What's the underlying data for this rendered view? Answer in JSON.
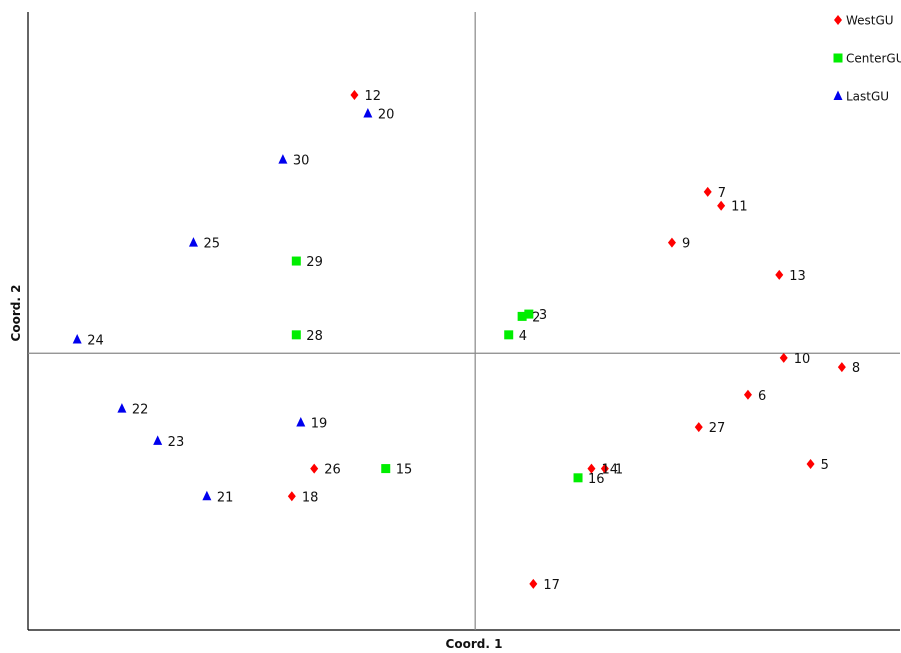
{
  "chart_data": {
    "type": "scatter",
    "title": "",
    "xlabel": "Coord. 1",
    "ylabel": "Coord. 2",
    "xlim": [
      -1.0,
      0.95
    ],
    "ylim": [
      -0.6,
      0.74
    ],
    "reference_lines": {
      "x": 0,
      "y": 0
    },
    "grid": false,
    "legend_position": "top-right",
    "series": [
      {
        "name": "WestGU",
        "color": "#ff0000",
        "marker": "diamond",
        "points": [
          {
            "label": "12",
            "x": -0.27,
            "y": 0.56
          },
          {
            "label": "7",
            "x": 0.52,
            "y": 0.35
          },
          {
            "label": "11",
            "x": 0.55,
            "y": 0.32
          },
          {
            "label": "9",
            "x": 0.44,
            "y": 0.24
          },
          {
            "label": "13",
            "x": 0.68,
            "y": 0.17
          },
          {
            "label": "10",
            "x": 0.69,
            "y": -0.01
          },
          {
            "label": "8",
            "x": 0.82,
            "y": -0.03
          },
          {
            "label": "6",
            "x": 0.61,
            "y": -0.09
          },
          {
            "label": "27",
            "x": 0.5,
            "y": -0.16
          },
          {
            "label": "5",
            "x": 0.75,
            "y": -0.24
          },
          {
            "label": "14",
            "x": 0.26,
            "y": -0.25
          },
          {
            "label": "1",
            "x": 0.29,
            "y": -0.25
          },
          {
            "label": "17",
            "x": 0.13,
            "y": -0.5
          },
          {
            "label": "26",
            "x": -0.36,
            "y": -0.25
          },
          {
            "label": "18",
            "x": -0.41,
            "y": -0.31
          }
        ]
      },
      {
        "name": "CenterGU",
        "color": "#00ee00",
        "marker": "square",
        "points": [
          {
            "label": "29",
            "x": -0.4,
            "y": 0.2
          },
          {
            "label": "28",
            "x": -0.4,
            "y": 0.04
          },
          {
            "label": "2",
            "x": 0.105,
            "y": 0.08
          },
          {
            "label": "3",
            "x": 0.12,
            "y": 0.085
          },
          {
            "label": "4",
            "x": 0.075,
            "y": 0.04
          },
          {
            "label": "15",
            "x": -0.2,
            "y": -0.25
          },
          {
            "label": "16",
            "x": 0.23,
            "y": -0.27
          }
        ]
      },
      {
        "name": "LastGU",
        "color": "#0000ee",
        "marker": "triangle",
        "points": [
          {
            "label": "20",
            "x": -0.24,
            "y": 0.52
          },
          {
            "label": "30",
            "x": -0.43,
            "y": 0.42
          },
          {
            "label": "25",
            "x": -0.63,
            "y": 0.24
          },
          {
            "label": "24",
            "x": -0.89,
            "y": 0.03
          },
          {
            "label": "22",
            "x": -0.79,
            "y": -0.12
          },
          {
            "label": "23",
            "x": -0.71,
            "y": -0.19
          },
          {
            "label": "19",
            "x": -0.39,
            "y": -0.15
          },
          {
            "label": "21",
            "x": -0.6,
            "y": -0.31
          }
        ]
      }
    ]
  }
}
